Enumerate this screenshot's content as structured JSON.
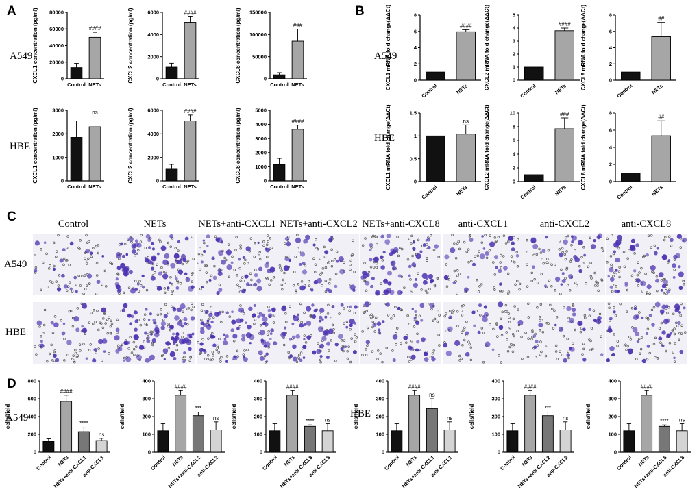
{
  "panel_letters": [
    "A",
    "B",
    "C",
    "D"
  ],
  "row_labels": {
    "A549": "A549",
    "HBE": "HBE"
  },
  "micrograph_conditions": [
    "Control",
    "NETs",
    "NETs+anti-CXCL1",
    "NETs+anti-CXCL2",
    "NETs+anti-CXCL8",
    "anti-CXCL1",
    "anti-CXCL2",
    "anti-CXCL8"
  ],
  "colors": {
    "black_bar": "#111111",
    "gray_bar": "#a6a6a6",
    "mid_gray_bar": "#777777",
    "light_gray_bar": "#d4d4d4",
    "stain": "#4a2fb0"
  },
  "chart_data": [
    {
      "id": "A1",
      "type": "bar",
      "cell_line": "A549",
      "ylabel": "CXCL1 concentration (pg/ml)",
      "ylim": [
        0,
        80000
      ],
      "yticks": [
        0,
        20000,
        40000,
        60000,
        80000
      ],
      "categories": [
        "Control",
        "NETs"
      ],
      "values": [
        13500,
        50000
      ],
      "errors": [
        5000,
        6000
      ],
      "annotations": [
        "",
        "####"
      ]
    },
    {
      "id": "A2",
      "type": "bar",
      "cell_line": "A549",
      "ylabel": "CXCL2 concentration (pg/ml)",
      "ylim": [
        0,
        6000
      ],
      "yticks": [
        0,
        2000,
        4000,
        6000
      ],
      "categories": [
        "Control",
        "NETs"
      ],
      "values": [
        1050,
        5100
      ],
      "errors": [
        350,
        500
      ],
      "annotations": [
        "",
        "####"
      ]
    },
    {
      "id": "A3",
      "type": "bar",
      "cell_line": "A549",
      "ylabel": "CXCL8 concentration (pg/ml)",
      "ylim": [
        0,
        150000
      ],
      "yticks": [
        0,
        50000,
        100000,
        150000
      ],
      "categories": [
        "Control",
        "NETs"
      ],
      "values": [
        9000,
        85000
      ],
      "errors": [
        5000,
        27000
      ],
      "annotations": [
        "",
        "###"
      ]
    },
    {
      "id": "A4",
      "type": "bar",
      "cell_line": "HBE",
      "ylabel": "CXCL1 concentration (pg/ml)",
      "ylim": [
        0,
        3000
      ],
      "yticks": [
        0,
        1000,
        2000,
        3000
      ],
      "categories": [
        "Control",
        "NETs"
      ],
      "values": [
        1850,
        2300
      ],
      "errors": [
        700,
        450
      ],
      "annotations": [
        "",
        "ns"
      ]
    },
    {
      "id": "A5",
      "type": "bar",
      "cell_line": "HBE",
      "ylabel": "CXCL2 concentration (pg/ml)",
      "ylim": [
        0,
        6000
      ],
      "yticks": [
        0,
        2000,
        4000,
        6000
      ],
      "categories": [
        "Control",
        "NETs"
      ],
      "values": [
        1050,
        5100
      ],
      "errors": [
        350,
        500
      ],
      "annotations": [
        "",
        "####"
      ]
    },
    {
      "id": "A6",
      "type": "bar",
      "cell_line": "HBE",
      "ylabel": "CXCL8 concentration (pg/ml)",
      "ylim": [
        0,
        5000
      ],
      "yticks": [
        0,
        1000,
        2000,
        3000,
        4000,
        5000
      ],
      "categories": [
        "Control",
        "NETs"
      ],
      "values": [
        1150,
        3650
      ],
      "errors": [
        450,
        300
      ],
      "annotations": [
        "",
        "####"
      ]
    },
    {
      "id": "B1",
      "type": "bar",
      "cell_line": "A549",
      "ylabel": "CXCL1 mRNA fold change(ΔΔCt)",
      "ylim": [
        0,
        8
      ],
      "yticks": [
        0,
        2,
        4,
        6,
        8
      ],
      "categories": [
        "Control",
        "NETs"
      ],
      "values": [
        1,
        5.95
      ],
      "errors": [
        0,
        0.25
      ],
      "annotations": [
        "",
        "####"
      ]
    },
    {
      "id": "B2",
      "type": "bar",
      "cell_line": "A549",
      "ylabel": "CXCL2 mRNA fold change(ΔΔCt)",
      "ylim": [
        0,
        5
      ],
      "yticks": [
        0,
        1,
        2,
        3,
        4,
        5
      ],
      "categories": [
        "Control",
        "NETs"
      ],
      "values": [
        1,
        3.8
      ],
      "errors": [
        0,
        0.2
      ],
      "annotations": [
        "",
        "####"
      ]
    },
    {
      "id": "B3",
      "type": "bar",
      "cell_line": "A549",
      "ylabel": "CXCL8 mRNA fold change(ΔΔCt)",
      "ylim": [
        0,
        8
      ],
      "yticks": [
        0,
        2,
        4,
        6,
        8
      ],
      "categories": [
        "Control",
        "NETs"
      ],
      "values": [
        1,
        5.35
      ],
      "errors": [
        0,
        1.75
      ],
      "annotations": [
        "",
        "##"
      ]
    },
    {
      "id": "B4",
      "type": "bar",
      "cell_line": "HBE",
      "ylabel": "CXCL1 mRNA fold change(ΔΔCt)",
      "ylim": [
        0,
        1.5
      ],
      "yticks": [
        0,
        0.5,
        1.0,
        1.5
      ],
      "categories": [
        "Control",
        "NETs"
      ],
      "values": [
        1,
        1.04
      ],
      "errors": [
        0,
        0.2
      ],
      "annotations": [
        "",
        "ns"
      ]
    },
    {
      "id": "B5",
      "type": "bar",
      "cell_line": "HBE",
      "ylabel": "CXCL2 mRNA fold change(ΔΔCt)",
      "ylim": [
        0,
        10
      ],
      "yticks": [
        0,
        2,
        4,
        6,
        8,
        10
      ],
      "categories": [
        "Control",
        "NETs"
      ],
      "values": [
        1,
        7.7
      ],
      "errors": [
        0,
        1.6
      ],
      "annotations": [
        "",
        "###"
      ]
    },
    {
      "id": "B6",
      "type": "bar",
      "cell_line": "HBE",
      "ylabel": "CXCL8 mRNA fold change(ΔΔCt)",
      "ylim": [
        0,
        8
      ],
      "yticks": [
        0,
        2,
        4,
        6,
        8
      ],
      "categories": [
        "Control",
        "NETs"
      ],
      "values": [
        1,
        5.35
      ],
      "errors": [
        0,
        1.75
      ],
      "annotations": [
        "",
        "##"
      ]
    },
    {
      "id": "D1",
      "type": "bar",
      "cell_line": "A549",
      "ylabel": "cells/field",
      "ylim": [
        0,
        800
      ],
      "yticks": [
        0,
        200,
        400,
        600,
        800
      ],
      "categories": [
        "Control",
        "NETs",
        "NETs+anti-CXCL1",
        "anti-CXCL1"
      ],
      "values": [
        120,
        570,
        230,
        130
      ],
      "errors": [
        30,
        70,
        50,
        25
      ],
      "annotations": [
        "",
        "####",
        "****",
        "ns"
      ]
    },
    {
      "id": "D2",
      "type": "bar",
      "cell_line": "A549",
      "ylabel": "cells/field",
      "ylim": [
        0,
        400
      ],
      "yticks": [
        0,
        100,
        200,
        300,
        400
      ],
      "categories": [
        "Control",
        "NETs",
        "NETs+anti-CXCL2",
        "anti-CXCL2"
      ],
      "values": [
        120,
        320,
        205,
        125
      ],
      "errors": [
        40,
        25,
        20,
        45
      ],
      "annotations": [
        "",
        "####",
        "***",
        "ns"
      ]
    },
    {
      "id": "D3",
      "type": "bar",
      "cell_line": "A549",
      "ylabel": "cells/field",
      "ylim": [
        0,
        400
      ],
      "yticks": [
        0,
        100,
        200,
        300,
        400
      ],
      "categories": [
        "Control",
        "NETs",
        "NETs+anti-CXCL8",
        "anti-CXCL8"
      ],
      "values": [
        120,
        320,
        145,
        120
      ],
      "errors": [
        40,
        25,
        8,
        40
      ],
      "annotations": [
        "",
        "####",
        "****",
        "ns"
      ]
    },
    {
      "id": "D4",
      "type": "bar",
      "cell_line": "HBE",
      "ylabel": "cells/field",
      "ylim": [
        0,
        400
      ],
      "yticks": [
        0,
        100,
        200,
        300,
        400
      ],
      "categories": [
        "Control",
        "NETs",
        "NETs+anti-CXCL1",
        "anti-CXCL1"
      ],
      "values": [
        120,
        320,
        245,
        125
      ],
      "errors": [
        40,
        25,
        55,
        45
      ],
      "annotations": [
        "",
        "####",
        "ns",
        "ns"
      ]
    },
    {
      "id": "D5",
      "type": "bar",
      "cell_line": "HBE",
      "ylabel": "cells/field",
      "ylim": [
        0,
        400
      ],
      "yticks": [
        0,
        100,
        200,
        300,
        400
      ],
      "categories": [
        "Control",
        "NETs",
        "NETs+anti-CXCL2",
        "anti-CXCL2"
      ],
      "values": [
        120,
        320,
        205,
        125
      ],
      "errors": [
        40,
        25,
        20,
        45
      ],
      "annotations": [
        "",
        "####",
        "***",
        "ns"
      ]
    },
    {
      "id": "D6",
      "type": "bar",
      "cell_line": "HBE",
      "ylabel": "cells/field",
      "ylim": [
        0,
        400
      ],
      "yticks": [
        0,
        100,
        200,
        300,
        400
      ],
      "categories": [
        "Control",
        "NETs",
        "NETs+anti-CXCL8",
        "anti-CXCL8"
      ],
      "values": [
        120,
        320,
        145,
        120
      ],
      "errors": [
        40,
        25,
        8,
        40
      ],
      "annotations": [
        "",
        "####",
        "****",
        "ns"
      ]
    }
  ]
}
